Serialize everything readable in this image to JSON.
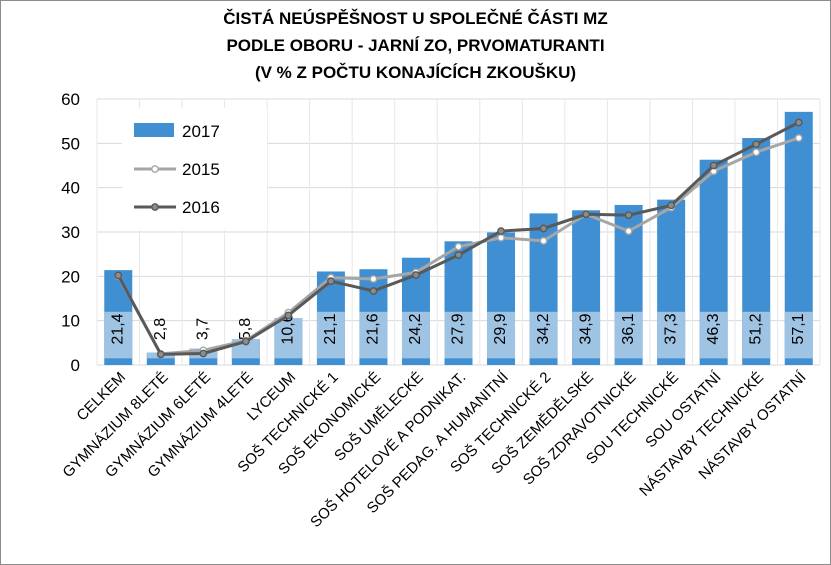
{
  "chart_data": {
    "type": "bar",
    "title": [
      "ČISTÁ NEÚSPĚŠNOST U SPOLEČNÉ ČÁSTI MZ",
      "PODLE OBORU - JARNÍ ZO, PRVOMATURANTI",
      "(V % Z POČTU KONAJÍCÍCH ZKOUŠKU)"
    ],
    "categories": [
      "CELKEM",
      "GYMNÁZIUM 8LETÉ",
      "GYMNÁZIUM 6LETÉ",
      "GYMNÁZIUM 4LETÉ",
      "LYCEUM",
      "SOŠ TECHNICKÉ 1",
      "SOŠ EKONOMICKÉ",
      "SOŠ UMĚLECKÉ",
      "SOŠ HOTELOVÉ A PODNIKAT.",
      "SOŠ PEDAG. A HUMANITNÍ",
      "SOŠ TECHNICKÉ 2",
      "SOŠ ZEMĚDĚLSKÉ",
      "SOŠ ZDRAVOTNICKÉ",
      "SOU TECHNICKÉ",
      "SOU OSTATNÍ",
      "NÁSTAVBY TECHNICKÉ",
      "NÁSTAVBY OSTATNÍ"
    ],
    "series": [
      {
        "name": "2017",
        "kind": "bar",
        "color": "#3f8fd2",
        "values": [
          21.4,
          2.8,
          3.7,
          5.8,
          10.6,
          21.1,
          21.6,
          24.2,
          27.9,
          29.9,
          34.2,
          34.9,
          36.1,
          37.3,
          46.3,
          51.2,
          57.1
        ],
        "labels": [
          "21,4",
          "2,8",
          "3,7",
          "5,8",
          "10,6",
          "21,1",
          "21,6",
          "24,2",
          "27,9",
          "29,9",
          "34,2",
          "34,9",
          "36,1",
          "37,3",
          "46,3",
          "51,2",
          "57,1"
        ]
      },
      {
        "name": "2015",
        "kind": "line",
        "color": "#a6a6a6",
        "values": [
          20.0,
          2.5,
          3.3,
          5.5,
          11.8,
          19.7,
          19.4,
          20.9,
          26.7,
          28.7,
          28.0,
          34.0,
          30.2,
          35.5,
          43.7,
          48.0,
          51.2
        ]
      },
      {
        "name": "2016",
        "kind": "line",
        "color": "#595959",
        "values": [
          20.2,
          2.4,
          2.6,
          5.3,
          11.2,
          18.9,
          16.7,
          20.3,
          24.8,
          30.2,
          30.8,
          34.0,
          33.8,
          36.0,
          45.0,
          49.8,
          54.7
        ]
      }
    ],
    "ylim": [
      0,
      60
    ],
    "yticks": [
      0,
      10,
      20,
      30,
      40,
      50,
      60
    ],
    "grid": true,
    "legend": "top-left",
    "xlabel": "",
    "ylabel": ""
  }
}
